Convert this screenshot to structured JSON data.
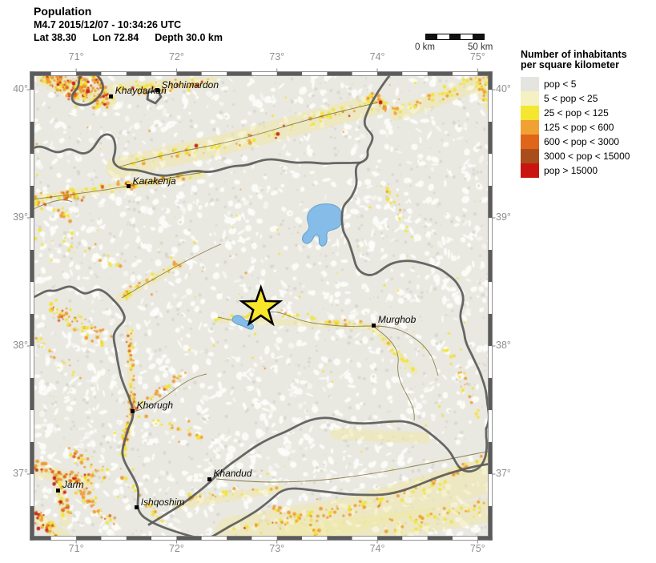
{
  "header": {
    "title": "Population",
    "event_line": "M4.7  2015/12/07 - 10:34:26 UTC",
    "lat": "Lat 38.30",
    "lon": "Lon  72.84",
    "depth": "Depth  30.0 km"
  },
  "scale_bar": {
    "start_label": "0 km",
    "end_label": "50 km",
    "segment_count": 5,
    "dark_color": "#111111",
    "light_color": "#ffffff"
  },
  "legend": {
    "title_line1": "Number of inhabitants",
    "title_line2": "per square kilometer",
    "entries": [
      {
        "label": "pop < 5",
        "color": "#e5e4de"
      },
      {
        "label": "5 < pop < 25",
        "color": "#f5f1c3"
      },
      {
        "label": "25 < pop < 125",
        "color": "#f5e72f"
      },
      {
        "label": "125 < pop < 600",
        "color": "#f0a132"
      },
      {
        "label": "600 < pop < 3000",
        "color": "#e0641a"
      },
      {
        "label": "3000 < pop < 15000",
        "color": "#a94e1a"
      },
      {
        "label": "pop > 15000",
        "color": "#ca1410"
      }
    ]
  },
  "axes": {
    "lon_labels": [
      {
        "text": "71°",
        "deg": 71
      },
      {
        "text": "72°",
        "deg": 72
      },
      {
        "text": "73°",
        "deg": 73
      },
      {
        "text": "74°",
        "deg": 74
      },
      {
        "text": "75°",
        "deg": 75
      }
    ],
    "lat_labels": [
      {
        "text": "40°",
        "deg": 40
      },
      {
        "text": "39°",
        "deg": 39
      },
      {
        "text": "38°",
        "deg": 38
      },
      {
        "text": "37°",
        "deg": 37
      }
    ]
  },
  "map": {
    "bounds": {
      "lon_min": 70.56,
      "lon_max": 75.125,
      "lat_min": 36.5,
      "lat_max": 40.125
    },
    "epicenter": {
      "lon": 72.84,
      "lat": 38.3
    },
    "cities": [
      {
        "name": "Khaydarkan",
        "lon": 71.348,
        "lat": 39.95
      },
      {
        "name": "Shohimardon",
        "lon": 71.81,
        "lat": 39.994
      },
      {
        "name": "Karakenja",
        "lon": 71.523,
        "lat": 39.245
      },
      {
        "name": "Murghob",
        "lon": 73.967,
        "lat": 38.16
      },
      {
        "name": "Khorugh",
        "lon": 71.563,
        "lat": 37.492
      },
      {
        "name": "Khandud",
        "lon": 72.327,
        "lat": 36.962
      },
      {
        "name": "Jarm",
        "lon": 70.823,
        "lat": 36.875
      },
      {
        "name": "Ishqoshim",
        "lon": 71.603,
        "lat": 36.738
      }
    ],
    "colors": {
      "land": "#eae9e1",
      "border": "#5a5a5a",
      "water_fill": "#85bce8",
      "water_stroke": "#62a0d0",
      "star_fill": "#f8e62b",
      "star_stroke": "#000000"
    }
  }
}
